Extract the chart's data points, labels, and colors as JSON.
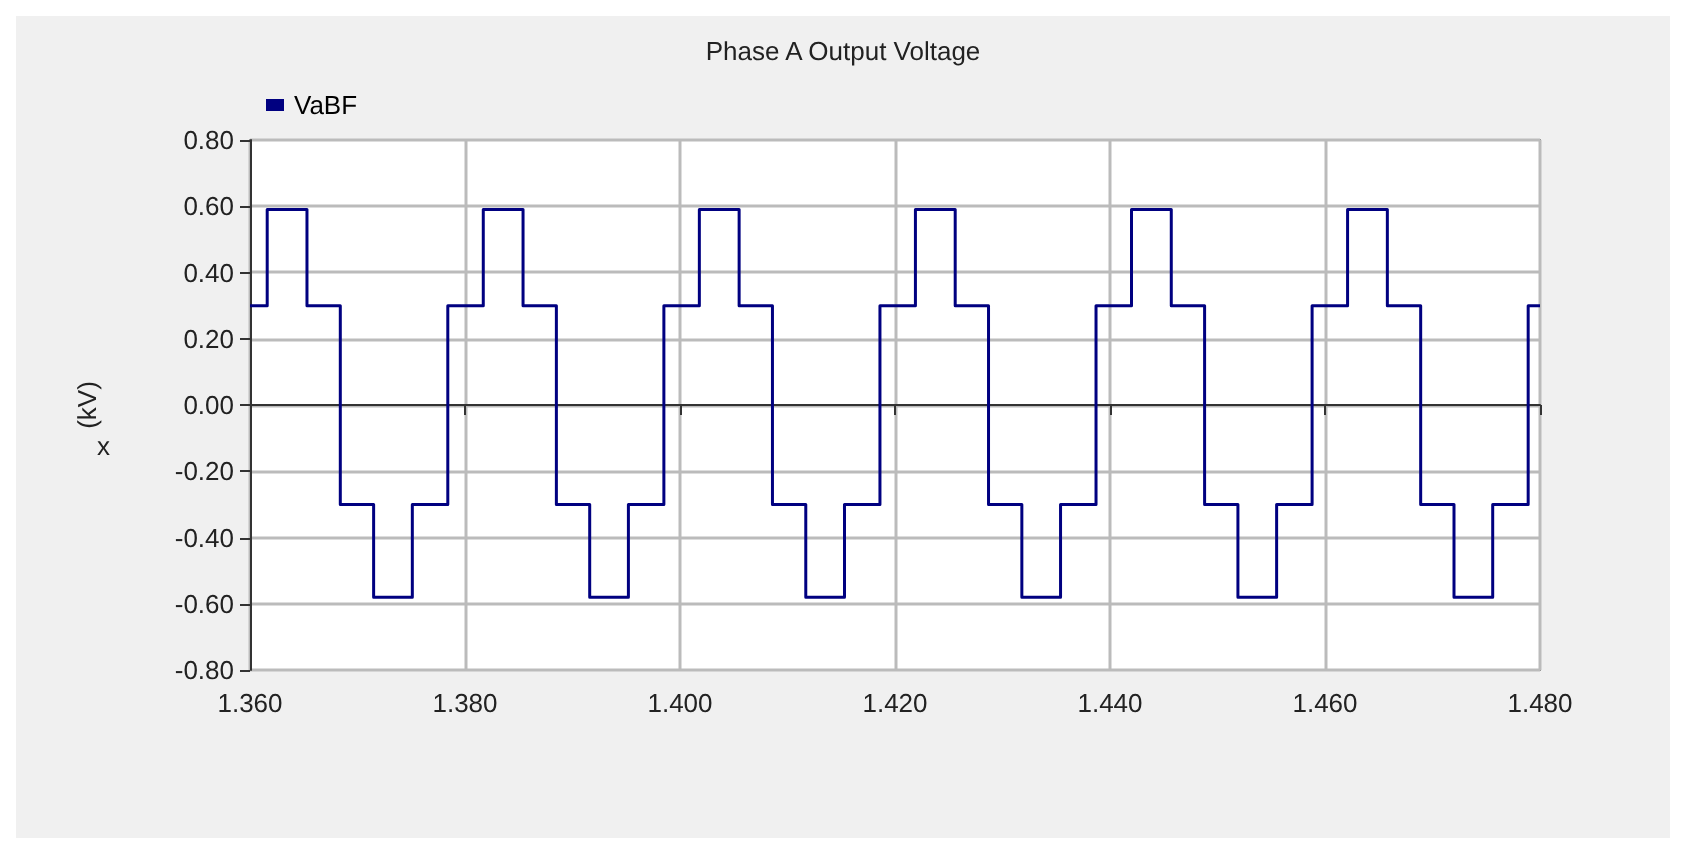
{
  "chart_data": {
    "type": "step",
    "title": "Phase A Output Voltage",
    "xlabel": "x",
    "ylabel": "(kV)",
    "legend": "top left",
    "grid": true,
    "marker": "none",
    "x": [
      1.36,
      1.3616,
      1.3653,
      1.3684,
      1.3715,
      1.3751,
      1.3784,
      1.3817,
      1.3854,
      1.3885,
      1.3916,
      1.3952,
      1.3985,
      1.4018,
      1.4055,
      1.4086,
      1.4117,
      1.4153,
      1.4186,
      1.4219,
      1.4256,
      1.4287,
      1.4318,
      1.4354,
      1.4387,
      1.442,
      1.4457,
      1.4488,
      1.4519,
      1.4555,
      1.4588,
      1.4621,
      1.4658,
      1.4689,
      1.472,
      1.4756,
      1.4789,
      1.48
    ],
    "series": [
      {
        "name": "VaBF",
        "color": "#000080",
        "values": [
          0.3,
          0.59,
          0.3,
          -0.3,
          -0.58,
          -0.3,
          0.3,
          0.59,
          0.3,
          -0.3,
          -0.58,
          -0.3,
          0.3,
          0.59,
          0.3,
          -0.3,
          -0.58,
          -0.3,
          0.3,
          0.59,
          0.3,
          -0.3,
          -0.58,
          -0.3,
          0.3,
          0.59,
          0.3,
          -0.3,
          -0.58,
          -0.3,
          0.3,
          0.59,
          0.3,
          -0.3,
          -0.58,
          -0.3,
          0.3,
          0.3
        ]
      }
    ],
    "xlim": [
      1.36,
      1.48
    ],
    "xticks": [
      {
        "value": 1.36,
        "label": "1.360"
      },
      {
        "value": 1.38,
        "label": "1.380"
      },
      {
        "value": 1.4,
        "label": "1.400"
      },
      {
        "value": 1.42,
        "label": "1.420"
      },
      {
        "value": 1.44,
        "label": "1.440"
      },
      {
        "value": 1.46,
        "label": "1.460"
      },
      {
        "value": 1.48,
        "label": "1.480"
      }
    ],
    "ylim": [
      -0.8,
      0.8
    ],
    "yticks": [
      {
        "value": -0.8,
        "label": "-0.80"
      },
      {
        "value": -0.6,
        "label": "-0.60"
      },
      {
        "value": -0.4,
        "label": "-0.40"
      },
      {
        "value": -0.2,
        "label": "-0.20"
      },
      {
        "value": 0,
        "label": "0.00"
      },
      {
        "value": 0.2,
        "label": "0.20"
      },
      {
        "value": 0.4,
        "label": "0.40"
      },
      {
        "value": 0.6,
        "label": "0.60"
      },
      {
        "value": 0.8,
        "label": "0.80"
      }
    ]
  }
}
